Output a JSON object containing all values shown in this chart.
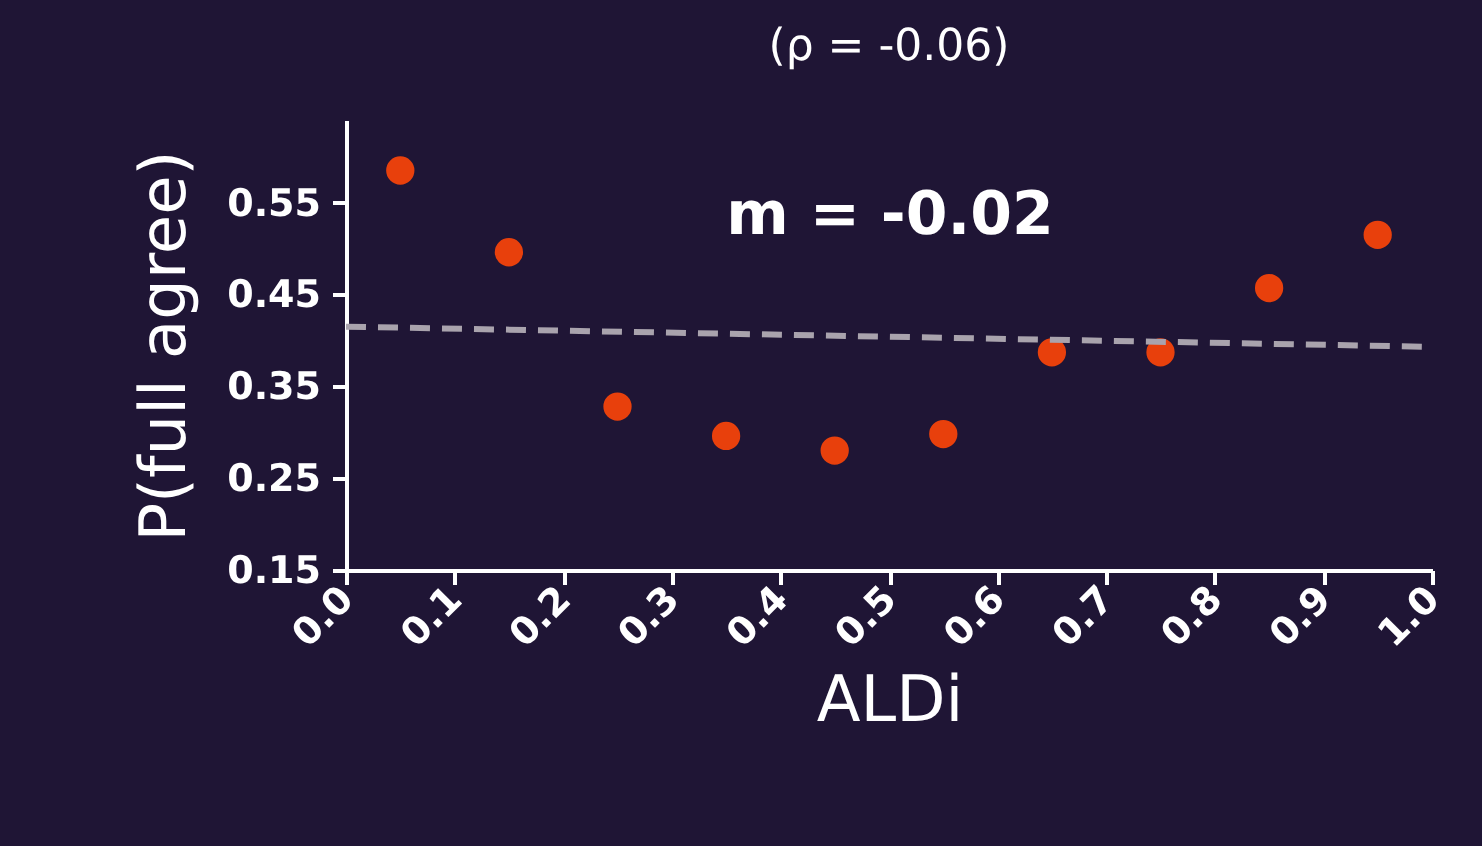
{
  "chart_data": {
    "type": "scatter",
    "title": "(ρ = -0.06)",
    "xlabel": "ALDi",
    "ylabel": "P(full agree)",
    "xlim": [
      0,
      1
    ],
    "xticks": [
      {
        "value": 0,
        "label": "0.0"
      },
      0.1,
      0.2,
      0.3,
      0.4,
      0.5,
      0.6,
      0.7,
      0.8,
      0.9,
      {
        "value": 1,
        "label": "1.0"
      }
    ],
    "ylim": [
      0.15,
      0.64
    ],
    "yticks": [
      0.15,
      0.25,
      0.35,
      0.45,
      0.55
    ],
    "series": [
      {
        "color": "#e8400c",
        "marker": "circle",
        "x": [
          0.05,
          0.15,
          0.25,
          0.35,
          0.45,
          0.55,
          0.65,
          0.75,
          0.85,
          0.95
        ],
        "values": [
          0.585,
          0.496,
          0.328,
          0.296,
          0.28,
          0.298,
          0.387,
          0.387,
          0.457,
          0.515
        ]
      },
      {
        "type": "line",
        "color": "#a9a3ad",
        "line_style": "dashed",
        "marker": "none",
        "x": [
          0,
          1
        ],
        "values": [
          0.415,
          0.393
        ]
      }
    ],
    "annotations": [
      "m = -0.02"
    ],
    "grid": false
  }
}
